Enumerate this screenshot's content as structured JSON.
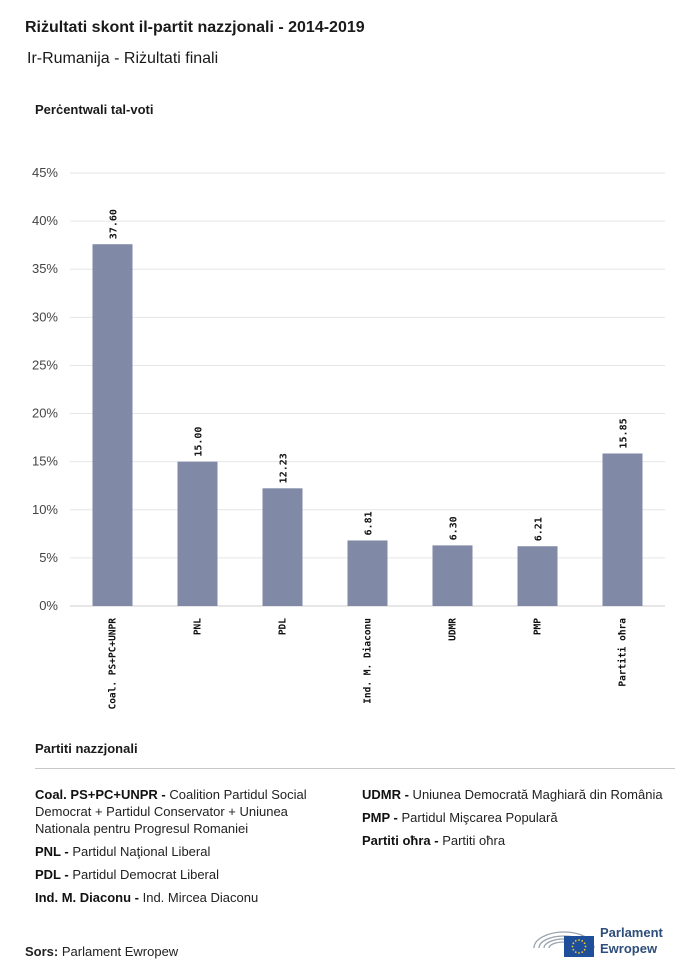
{
  "header": {
    "title": "Riżultati skont il-partit nazzjonali - 2014-2019",
    "subtitle": "Ir-Rumanija - Riżultati finali"
  },
  "chart_data": {
    "type": "bar",
    "ylabel": "Perċentwali tal-voti",
    "ylim": [
      0,
      45
    ],
    "yticks": [
      0,
      5,
      10,
      15,
      20,
      25,
      30,
      35,
      40,
      45
    ],
    "ytick_labels": [
      "0%",
      "5%",
      "10%",
      "15%",
      "20%",
      "25%",
      "30%",
      "35%",
      "40%",
      "45%"
    ],
    "categories": [
      "Coal. PS+PC+UNPR",
      "PNL",
      "PDL",
      "Ind. M. Diaconu",
      "UDMR",
      "PMP",
      "Partiti oħra"
    ],
    "values": [
      37.6,
      15.0,
      12.23,
      6.81,
      6.3,
      6.21,
      15.85
    ],
    "value_labels": [
      "37.60",
      "15.00",
      "12.23",
      "6.81",
      "6.30",
      "6.21",
      "15.85"
    ],
    "bar_color": "#8089a6",
    "grid": true
  },
  "legend": {
    "title": "Partiti nazzjonali",
    "left": [
      {
        "abbr": "Coal. PS+PC+UNPR -",
        "full": "Coalition Partidul Social Democrat + Partidul Conservator + Uniunea Nationala pentru Progresul Romaniei"
      },
      {
        "abbr": "PNL -",
        "full": "Partidul Naţional Liberal"
      },
      {
        "abbr": "PDL -",
        "full": "Partidul Democrat Liberal"
      },
      {
        "abbr": "Ind. M. Diaconu -",
        "full": "Ind. Mircea Diaconu"
      }
    ],
    "right": [
      {
        "abbr": "UDMR -",
        "full": "Uniunea Democrată Maghiară din România"
      },
      {
        "abbr": "PMP -",
        "full": "Partidul Mişcarea Populară"
      },
      {
        "abbr": "Partiti oħra -",
        "full": "Partiti oħra"
      }
    ]
  },
  "footer": {
    "source_label": "Sors:",
    "source_value": "Parlament Ewropew",
    "logo_line1": "Parlament",
    "logo_line2": "Ewropew"
  },
  "colors": {
    "logo_blue": "#2d4e7a",
    "eu_flag": "#1f4f9a",
    "eu_star": "#f3cf27"
  }
}
